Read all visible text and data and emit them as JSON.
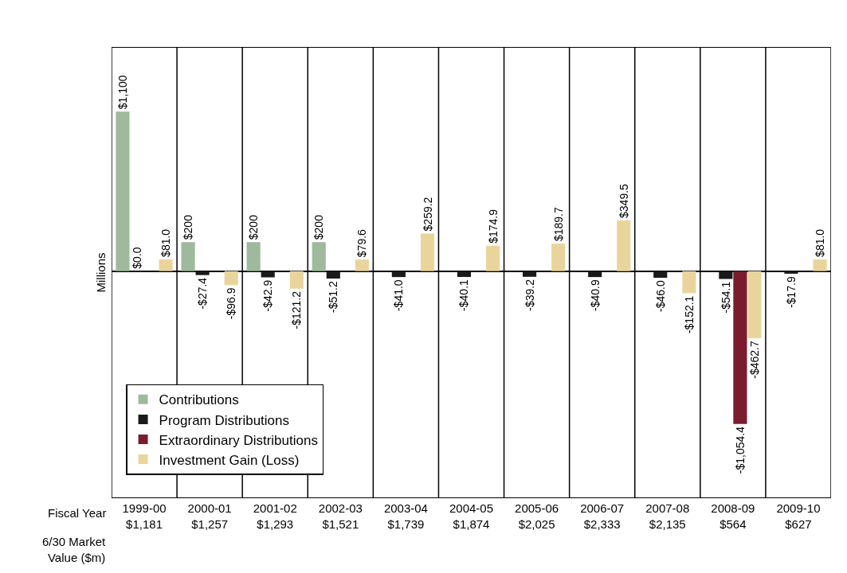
{
  "chart_data": {
    "type": "bar",
    "ylabel": "Millions",
    "categories": [
      "1999-00\n$1,181",
      "2000-01\n$1,257",
      "2001-02\n$1,293",
      "2002-03\n$1,521",
      "2003-04\n$1,739",
      "2004-05\n$1,874",
      "2005-06\n$2,025",
      "2006-07\n$2,333",
      "2007-08\n$2,135",
      "2008-09\n$564",
      "2009-10\n$627"
    ],
    "series": [
      {
        "name": "Contributions",
        "color": "#9fb99c",
        "values": [
          1100,
          200,
          200,
          200,
          null,
          null,
          null,
          null,
          null,
          null,
          null
        ],
        "value_labels": [
          "$1,100",
          "$200",
          "$200",
          "$200",
          null,
          null,
          null,
          null,
          null,
          null,
          null
        ]
      },
      {
        "name": "Program Distributions",
        "color": "#1a1a1a",
        "values": [
          0.0,
          -27.4,
          -42.9,
          -51.2,
          -41.0,
          -40.1,
          -39.2,
          -40.9,
          -46.0,
          -54.1,
          -17.9
        ],
        "value_labels": [
          "$0.0",
          "-$27.4",
          "-$42.9",
          "-$51.2",
          "-$41.0",
          "-$40.1",
          "-$39.2",
          "-$40.9",
          "-$46.0",
          "-$54.1",
          "-$17.9"
        ]
      },
      {
        "name": "Extraordinary Distributions",
        "color": "#7a1c2e",
        "values": [
          null,
          null,
          null,
          null,
          null,
          null,
          null,
          null,
          null,
          -1054.4,
          null
        ],
        "value_labels": [
          null,
          null,
          null,
          null,
          null,
          null,
          null,
          null,
          null,
          "-$1,054.4",
          null
        ]
      },
      {
        "name": "Investment Gain (Loss)",
        "color": "#e9d59c",
        "values": [
          81.0,
          -96.9,
          -121.2,
          79.6,
          259.2,
          174.9,
          189.7,
          349.5,
          -152.1,
          -462.7,
          81.0
        ],
        "value_labels": [
          "$81.0",
          "-$96.9",
          "-$121.2",
          "$79.6",
          "$259.2",
          "$174.9",
          "$189.7",
          "$349.5",
          "-$152.1",
          "-$462.7",
          "$81.0"
        ]
      }
    ],
    "ylim": [
      -1560,
      1540
    ],
    "annotations": [
      "Fiscal Year",
      "6/30 Market\nValue ($m)"
    ],
    "grid": "x",
    "legend": "bottom left"
  }
}
